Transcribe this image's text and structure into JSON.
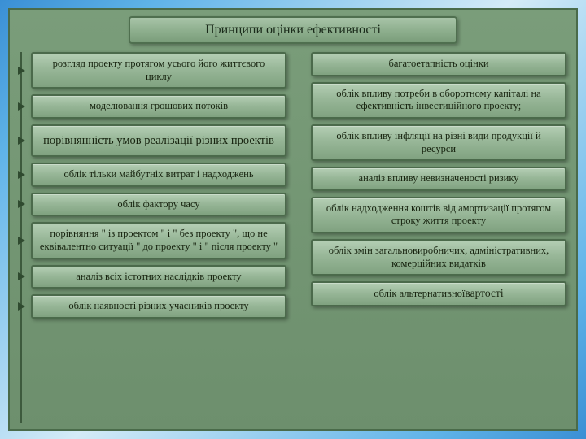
{
  "title": "Принципи оцінки ефективності",
  "left": [
    {
      "text": "розгляд проекту протягом усього його життєвого циклу",
      "big": false
    },
    {
      "text": "моделювання грошових потоків",
      "big": false
    },
    {
      "text": "порівнянність умов реалізації різних проектів",
      "big": true
    },
    {
      "text": "облік тільки майбутніх витрат і надходжень",
      "big": false
    },
    {
      "text": "облік фактору часу",
      "big": false
    },
    {
      "text": "порівняння \" із проектом \" і \" без проекту \", що не еквівалентно ситуації \" до проекту \" і \" після проекту \"",
      "big": false
    },
    {
      "text": "аналіз всіх істотних наслідків проекту",
      "big": false
    },
    {
      "text": "облік наявності різних учасників проекту",
      "big": false
    }
  ],
  "right": [
    {
      "text": "багатоетапність оцінки",
      "big": false
    },
    {
      "text": "облік впливу потреби в оборотному капіталі на ефективність інвестиційного проекту;",
      "big": false
    },
    {
      "text": "облік впливу інфляції\nна різні види продукції й ресурси",
      "big": false
    },
    {
      "text": "аналіз впливу невизначеності ризику",
      "big": false
    },
    {
      "text": "облік надходження коштів від амортизації протягом строку життя проекту",
      "big": false
    },
    {
      "text": "облік змін загальновиробничих, адміністративних, комерційних видатків",
      "big": false
    },
    {
      "text": "облік альтернативної вартості",
      "big": false,
      "tail_strong": true
    }
  ],
  "colors": {
    "node_border": "#4b6a4b",
    "node_grad_top": "#b4ceb4",
    "node_grad_bot": "#80a280",
    "canvas_bg": "#6d8f6d",
    "page_grad_a": "#3a8fd4",
    "page_grad_b": "#d4ebf7"
  }
}
